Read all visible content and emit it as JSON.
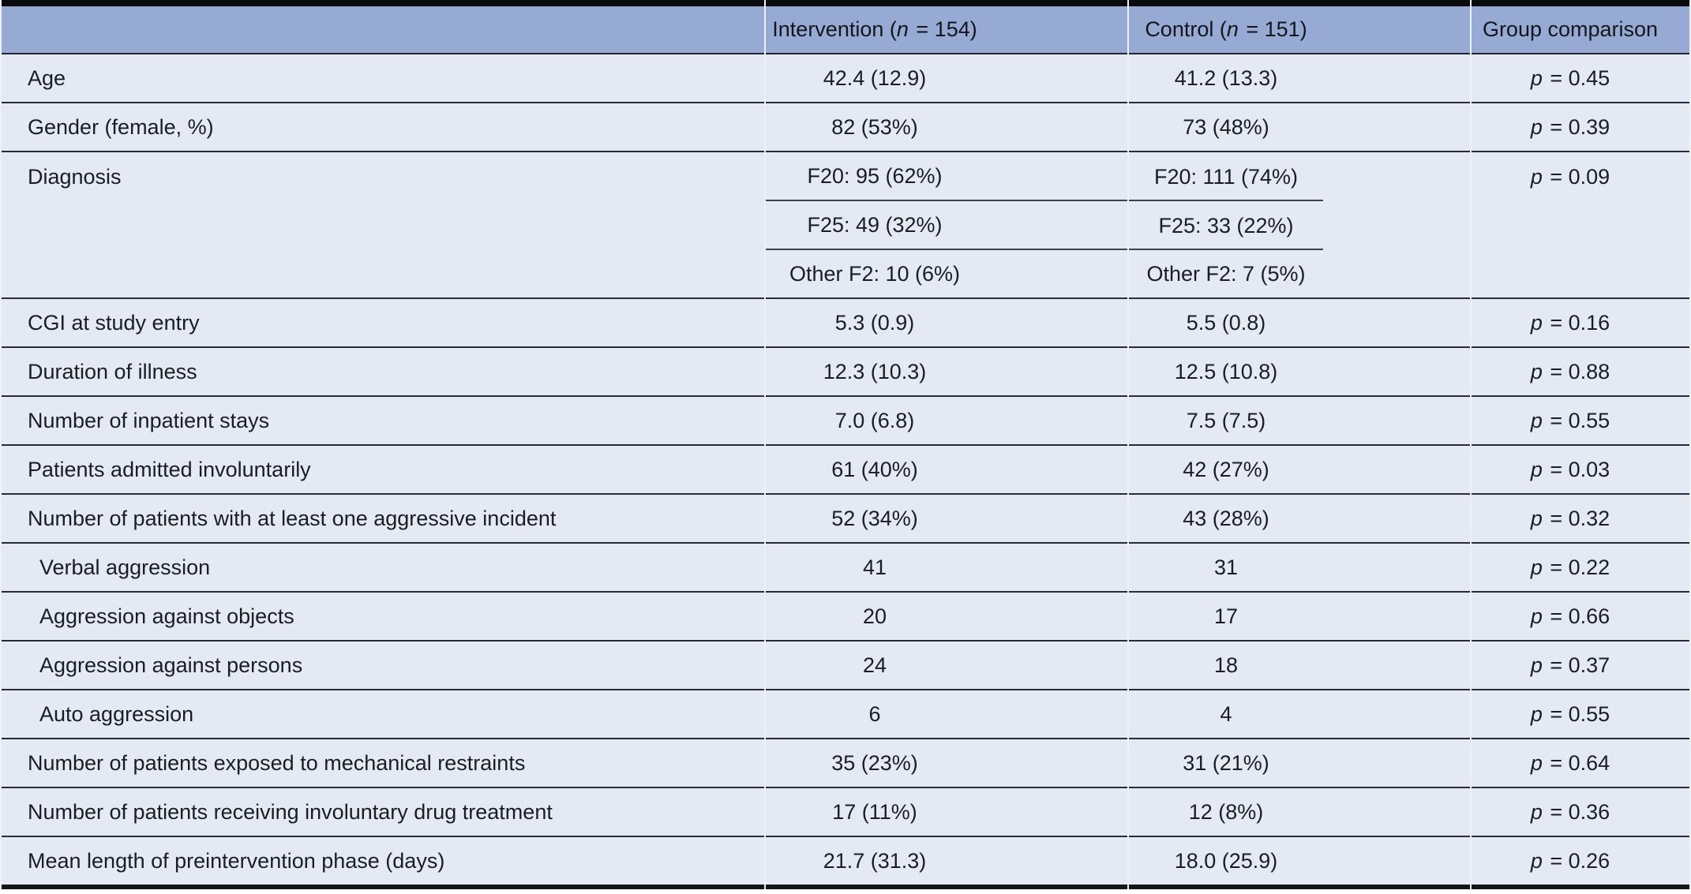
{
  "table": {
    "description": "Baseline characteristics comparison table, intervention vs control group",
    "colors": {
      "header_bg": "#96aad4",
      "body_bg": "#e4e9f3",
      "row_line": "#262b34",
      "inner_line": "#3a4150",
      "outer_rule": "#0a0b0d",
      "text": "#1b1d24"
    },
    "symbols": {
      "p": "p",
      "equals": " = "
    },
    "header": {
      "spacer": "",
      "intervention": {
        "prefix": "Intervention (",
        "n": "n",
        "suffix": " = 154)"
      },
      "control": {
        "prefix": "Control (",
        "n": "n",
        "suffix": " = 151)"
      },
      "group": "Group comparison"
    },
    "rows": [
      {
        "label": "Age",
        "intervention": "42.4 (12.9)",
        "control": "41.2 (13.3)",
        "p": "0.45"
      },
      {
        "label": "Gender (female, %)",
        "intervention": "82 (53%)",
        "control": "73 (48%)",
        "p": "0.39"
      },
      {
        "label": "Diagnosis",
        "p": "0.09",
        "sub": [
          {
            "intervention": "F20: 95 (62%)",
            "control": "F20: 111 (74%)"
          },
          {
            "intervention": "F25: 49 (32%)",
            "control": "F25: 33 (22%)"
          },
          {
            "intervention": "Other F2: 10 (6%)",
            "control": "Other F2: 7 (5%)"
          }
        ]
      },
      {
        "label": "CGI at study entry",
        "intervention": "5.3 (0.9)",
        "control": "5.5 (0.8)",
        "p": "0.16"
      },
      {
        "label": "Duration of illness",
        "intervention": "12.3 (10.3)",
        "control": "12.5 (10.8)",
        "p": "0.88"
      },
      {
        "label": "Number of inpatient stays",
        "intervention": "7.0 (6.8)",
        "control": "7.5 (7.5)",
        "p": "0.55"
      },
      {
        "label": "Patients admitted involuntarily",
        "intervention": "61 (40%)",
        "control": "42 (27%)",
        "p": "0.03"
      },
      {
        "label": "Number of patients with at least one aggressive incident",
        "intervention": "52 (34%)",
        "control": "43 (28%)",
        "p": "0.32"
      },
      {
        "label": "Verbal aggression",
        "indent": true,
        "intervention": "41",
        "control": "31",
        "p": "0.22"
      },
      {
        "label": "Aggression against objects",
        "indent": true,
        "intervention": "20",
        "control": "17",
        "p": "0.66"
      },
      {
        "label": "Aggression against persons",
        "indent": true,
        "intervention": "24",
        "control": "18",
        "p": "0.37"
      },
      {
        "label": "Auto aggression",
        "indent": true,
        "intervention": "6",
        "control": "4",
        "p": "0.55"
      },
      {
        "label": "Number of patients exposed to mechanical restraints",
        "intervention": "35 (23%)",
        "control": "31 (21%)",
        "p": "0.64"
      },
      {
        "label": "Number of patients receiving involuntary drug treatment",
        "intervention": "17 (11%)",
        "control": "12 (8%)",
        "p": "0.36"
      },
      {
        "label": "Mean length of preintervention phase (days)",
        "intervention": "21.7 (31.3)",
        "control": "18.0 (25.9)",
        "p": "0.26"
      }
    ]
  }
}
